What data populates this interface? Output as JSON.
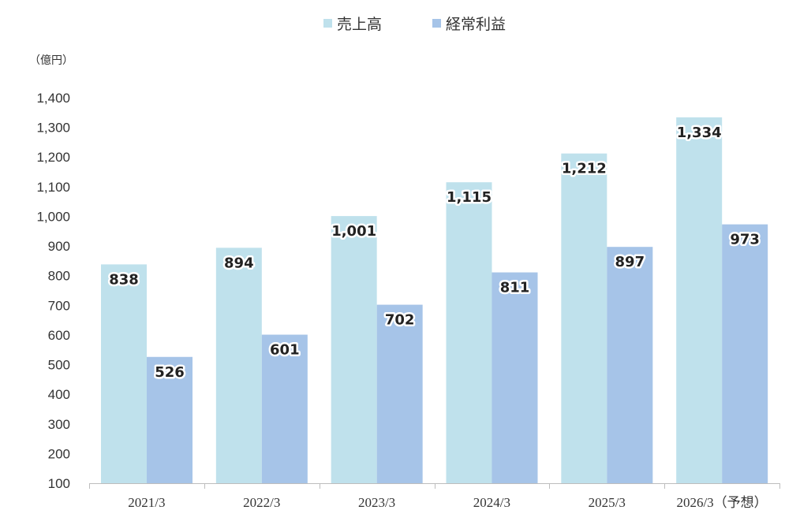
{
  "chart_data": {
    "type": "bar",
    "unit_label": "（億円）",
    "categories": [
      "2021/3",
      "2022/3",
      "2023/3",
      "2024/3",
      "2025/3",
      "2026/3（予想）"
    ],
    "series": [
      {
        "name": "売上高",
        "color": "#bfe1ec",
        "values": [
          838,
          894,
          1001,
          1115,
          1212,
          1334
        ],
        "labels": [
          "838",
          "894",
          "1,001",
          "1,115",
          "1,212",
          "1,334"
        ]
      },
      {
        "name": "経常利益",
        "color": "#a6c4e8",
        "values": [
          526,
          601,
          702,
          811,
          897,
          973
        ],
        "labels": [
          "526",
          "601",
          "702",
          "811",
          "897",
          "973"
        ]
      }
    ],
    "ylim": [
      100,
      1400
    ],
    "yticks": [
      "100",
      "200",
      "300",
      "400",
      "500",
      "600",
      "700",
      "800",
      "900",
      "1,000",
      "1,100",
      "1,200",
      "1,300",
      "1,400"
    ],
    "grid": false,
    "legend_position": "top-center"
  }
}
